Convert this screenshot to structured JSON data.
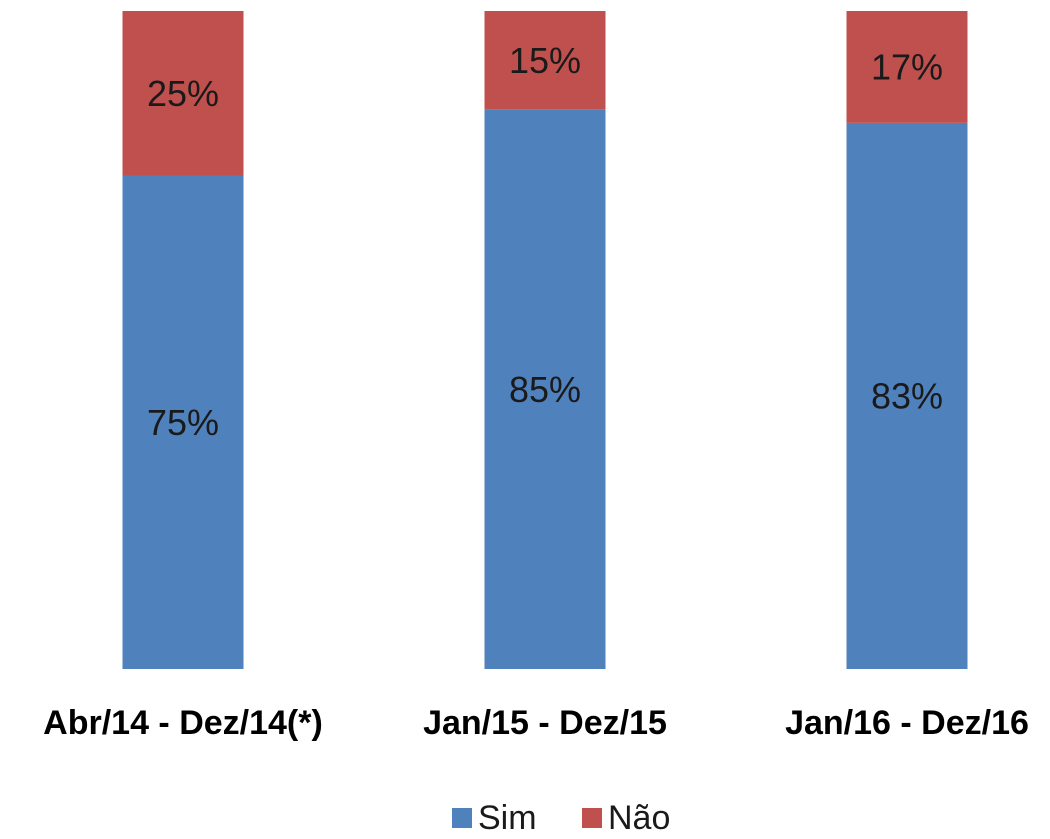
{
  "chart_data": {
    "type": "bar",
    "stacked": true,
    "normalized_percent": true,
    "categories": [
      "Abr/14 - Dez/14(*)",
      "Jan/15 - Dez/15",
      "Jan/16 - Dez/16"
    ],
    "series": [
      {
        "name": "Sim",
        "values": [
          75,
          85,
          83
        ],
        "labels": [
          "75%",
          "85%",
          "83%"
        ],
        "color": "#4F81BD"
      },
      {
        "name": "Não",
        "values": [
          25,
          15,
          17
        ],
        "labels": [
          "25%",
          "15%",
          "17%"
        ],
        "color": "#C0504D"
      }
    ],
    "title": "",
    "xlabel": "",
    "ylabel": "",
    "ylim": [
      0,
      100
    ],
    "grid": false,
    "legend_position": "bottom"
  }
}
